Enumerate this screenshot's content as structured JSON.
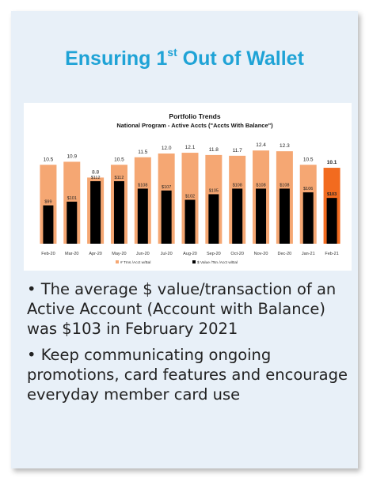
{
  "slide": {
    "title_prefix": "Ensuring 1",
    "title_sup": "st",
    "title_suffix": " Out of Wallet",
    "bullets": [
      "• The average $ value/transaction of an Active Account (Account with Balance) was $103 in February 2021",
      "• Keep communicating ongoing promotions, card features and encourage everyday member card use"
    ]
  },
  "chart_data": {
    "type": "bar",
    "title": "Portfolio Trends",
    "subtitle": "National Program - Active Accts (\"Accts With Balance\")",
    "categories": [
      "Feb-20",
      "Mar-20",
      "Apr-20",
      "May-20",
      "Jun-20",
      "Jul-20",
      "Aug-20",
      "Sep-20",
      "Oct-20",
      "Nov-20",
      "Dec-20",
      "Jan-21",
      "Feb-21"
    ],
    "series": [
      {
        "name": "# Trns /Acct w/Bal",
        "values": [
          10.5,
          10.9,
          8.8,
          10.5,
          11.5,
          12.0,
          12.1,
          11.8,
          11.7,
          12.4,
          12.3,
          10.5,
          10.1
        ],
        "labels": [
          "10.5",
          "10.9",
          "8.8",
          "10.5",
          "11.5",
          "12.0",
          "12.1",
          "11.8",
          "11.7",
          "12.4",
          "12.3",
          "10.5",
          "10.1"
        ],
        "color": "#f5a773",
        "highlight_color": "#f26b1f"
      },
      {
        "name": "$ Value /Tsn /Acct w/Bal",
        "values": [
          99,
          101,
          112,
          112,
          108,
          107,
          102,
          105,
          108,
          108,
          108,
          106,
          103
        ],
        "labels": [
          "$99",
          "$101",
          "$112",
          "$112",
          "$108",
          "$107",
          "$102",
          "$105",
          "$108",
          "$108",
          "$108",
          "$106",
          "$103"
        ],
        "color": "#000000"
      }
    ],
    "highlight_last": true
  }
}
